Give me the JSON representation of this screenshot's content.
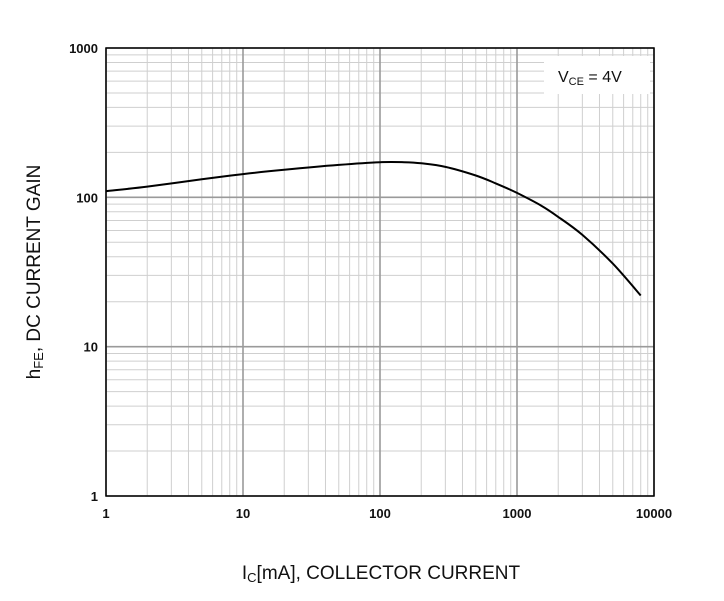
{
  "chart_data": {
    "type": "line",
    "xlabel": {
      "main": "I",
      "sub": "C",
      "rest": "[mA], COLLECTOR CURRENT"
    },
    "ylabel": {
      "main": "h",
      "sub": "FE",
      "rest": ", DC CURRENT GAIN"
    },
    "x_scale": "log",
    "y_scale": "log",
    "xlim": [
      1,
      10000
    ],
    "ylim": [
      1,
      1000
    ],
    "x_ticks": [
      "1",
      "10",
      "100",
      "1000",
      "10000"
    ],
    "y_ticks": [
      "1",
      "10",
      "100",
      "1000"
    ],
    "x_tick_values": [
      1,
      10,
      100,
      1000,
      10000
    ],
    "y_tick_values": [
      1,
      10,
      100,
      1000
    ],
    "grid": true,
    "annotation": {
      "main": "V",
      "sub": "CE",
      "rest": " = 4V"
    },
    "series": [
      {
        "x": [
          1,
          2,
          5,
          10,
          20,
          50,
          100,
          150,
          200,
          300,
          500,
          700,
          1000,
          1500,
          2000,
          3000,
          5000,
          8000
        ],
        "y": [
          110,
          118,
          132,
          143,
          153,
          165,
          172,
          172,
          169,
          160,
          140,
          124,
          107,
          88,
          74,
          56,
          36,
          22
        ]
      }
    ],
    "colors": {
      "line": "#000000",
      "grid_major": "#9a9a9a",
      "grid_minor": "#cfcfcf",
      "frame": "#000000"
    }
  }
}
